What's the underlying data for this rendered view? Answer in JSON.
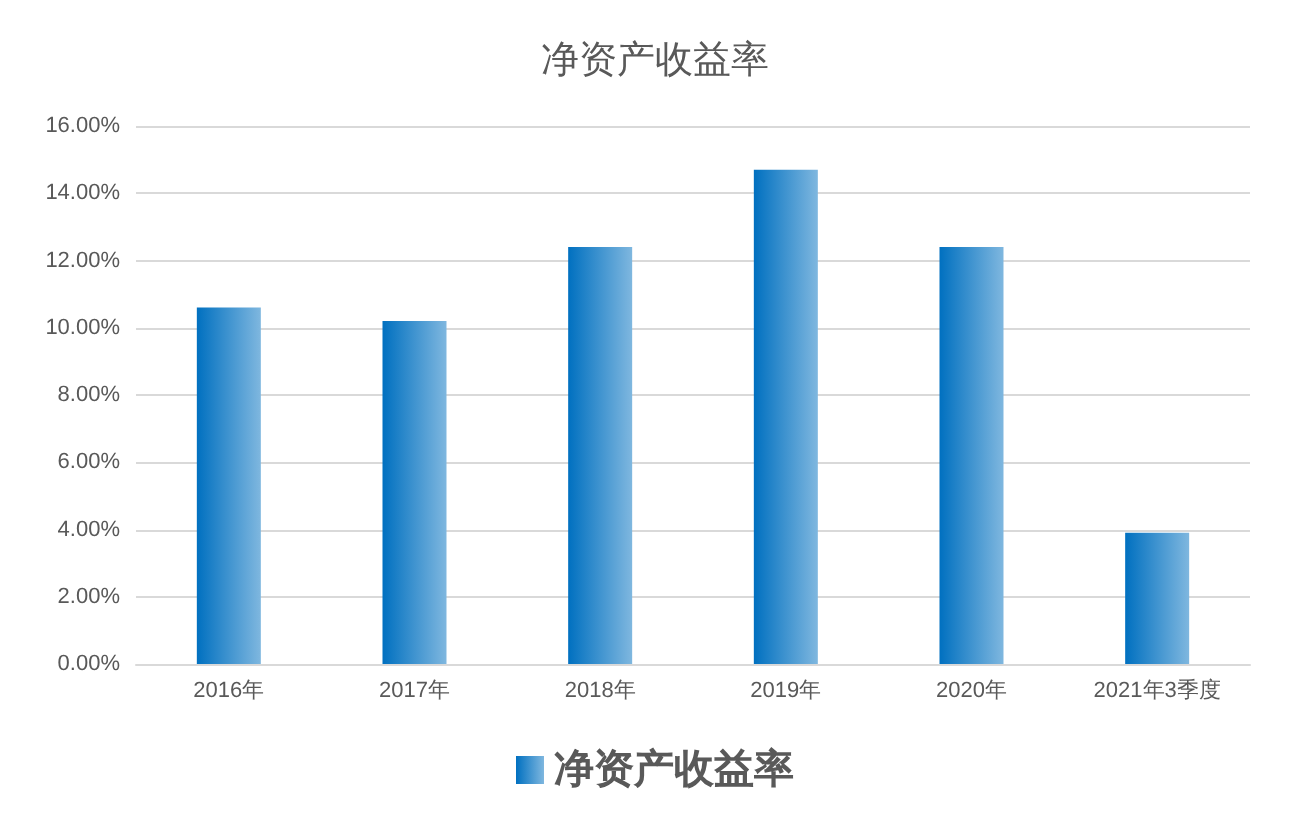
{
  "chart_data": {
    "type": "bar",
    "title": "净资产收益率",
    "categories": [
      "2016年",
      "2017年",
      "2018年",
      "2019年",
      "2020年",
      "2021年3季度"
    ],
    "series": [
      {
        "name": "净资产收益率",
        "color": "#0070c0",
        "values": [
          10.6,
          10.2,
          12.4,
          14.7,
          12.4,
          3.9
        ]
      }
    ],
    "ylim": [
      0,
      16
    ],
    "yticks": [
      {
        "value": 0,
        "label": "0.00%"
      },
      {
        "value": 2,
        "label": "2.00%"
      },
      {
        "value": 4,
        "label": "4.00%"
      },
      {
        "value": 6,
        "label": "6.00%"
      },
      {
        "value": 8,
        "label": "8.00%"
      },
      {
        "value": 10,
        "label": "10.00%"
      },
      {
        "value": 12,
        "label": "12.00%"
      },
      {
        "value": 14,
        "label": "14.00%"
      },
      {
        "value": 16,
        "label": "16.00%"
      }
    ],
    "grid": "y",
    "legend": "bottom"
  }
}
